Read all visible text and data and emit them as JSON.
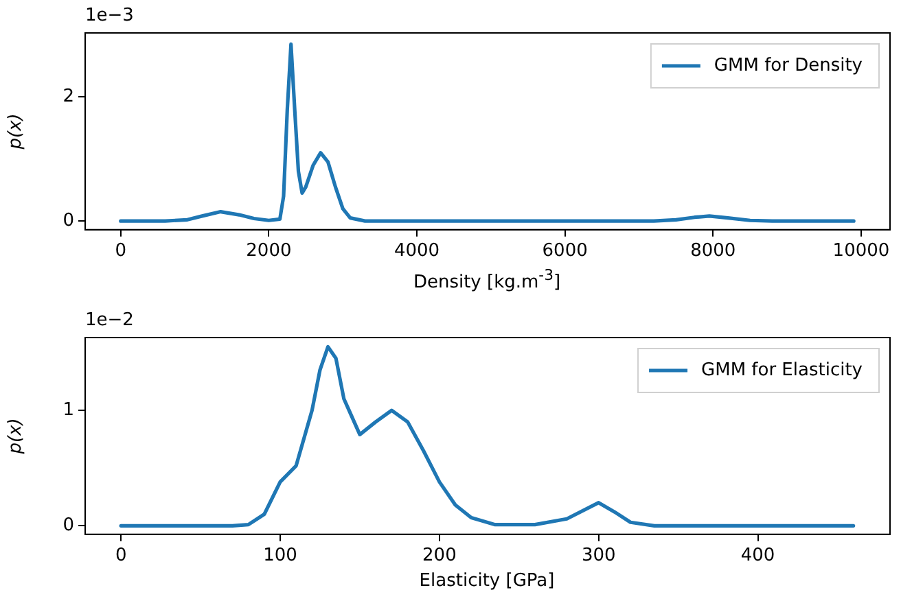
{
  "chart_data": [
    {
      "type": "line",
      "xlabel": "Density [kg.m$^{-3}$]",
      "ylabel": "p(x)",
      "annotations": [
        "1e−3"
      ],
      "legend": "top right",
      "grid": false,
      "marker": "none",
      "line_style": "solid",
      "xlim": [
        -480,
        10390
      ],
      "xticks": [
        0,
        2000,
        4000,
        6000,
        8000,
        10000
      ],
      "ylim": [
        -0.14,
        3.03
      ],
      "yticks": [
        0,
        2
      ],
      "series": [
        {
          "name": "GMM for Density",
          "color": "#1f77b4",
          "x": [
            0,
            600,
            900,
            1100,
            1350,
            1600,
            1800,
            2000,
            2150,
            2200,
            2250,
            2300,
            2350,
            2400,
            2450,
            2500,
            2600,
            2700,
            2800,
            2900,
            3000,
            3100,
            3300,
            7200,
            7500,
            7750,
            7950,
            8200,
            8500,
            8800,
            9900
          ],
          "values": [
            0,
            0,
            0.02,
            0.08,
            0.15,
            0.1,
            0.04,
            0.01,
            0.03,
            0.4,
            1.8,
            2.85,
            1.8,
            0.8,
            0.45,
            0.55,
            0.9,
            1.1,
            0.95,
            0.55,
            0.2,
            0.05,
            0,
            0,
            0.02,
            0.06,
            0.08,
            0.05,
            0.01,
            0,
            0
          ]
        }
      ]
    },
    {
      "type": "line",
      "xlabel": "Elasticity [GPa]",
      "ylabel": "p(x)",
      "annotations": [
        "1e−2"
      ],
      "legend": "top right",
      "grid": false,
      "marker": "none",
      "line_style": "solid",
      "xlim": [
        -22.5,
        483
      ],
      "xticks": [
        0,
        100,
        200,
        300,
        400
      ],
      "ylim": [
        -0.074,
        1.63
      ],
      "yticks": [
        0,
        1
      ],
      "series": [
        {
          "name": "GMM for Elasticity",
          "color": "#1f77b4",
          "x": [
            0,
            70,
            80,
            90,
            100,
            110,
            120,
            125,
            130,
            135,
            140,
            150,
            160,
            170,
            180,
            190,
            200,
            210,
            220,
            235,
            260,
            280,
            300,
            310,
            320,
            335,
            460
          ],
          "values": [
            0,
            0,
            0.01,
            0.1,
            0.38,
            0.52,
            1.0,
            1.35,
            1.55,
            1.45,
            1.1,
            0.79,
            0.9,
            1.0,
            0.9,
            0.65,
            0.38,
            0.18,
            0.07,
            0.01,
            0.01,
            0.06,
            0.2,
            0.12,
            0.03,
            0,
            0
          ]
        }
      ]
    }
  ]
}
